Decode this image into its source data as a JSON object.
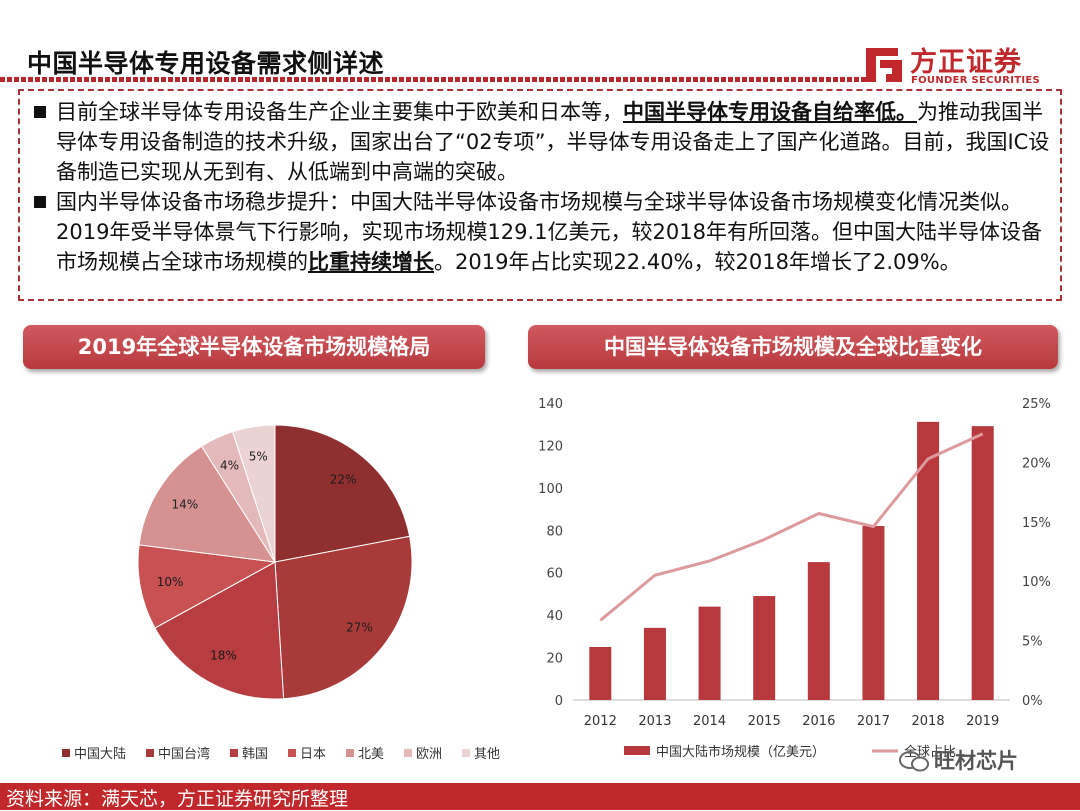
{
  "header": {
    "title": "中国半导体专用设备需求侧详述",
    "logo_cn": "方正证券",
    "logo_en": "FOUNDER SECURITIES"
  },
  "paragraphs": [
    {
      "pre": "目前全球半导体专用设备生产企业主要集中于欧美和日本等，",
      "bold": "中国半导体专用设备自给率低。",
      "post": "为推动我国半导体专用设备制造的技术升级，国家出台了“02专项”，半导体专用设备走上了国产化道路。目前，我国IC设备制造已实现从无到有、从低端到中高端的突破。"
    },
    {
      "pre": "国内半导体设备市场稳步提升：中国大陆半导体设备市场规模与全球半导体设备市场规模变化情况类似。2019年受半导体景气下行影响，实现市场规模129.1亿美元，较2018年有所回落。但中国大陆半导体设备市场规模占全球市场规模的",
      "bold": "比重持续增长",
      "post": "。2019年占比实现22.40%，较2018年增长了2.09%。"
    }
  ],
  "pie_banner": "2019年全球半导体设备市场规模格局",
  "bar_banner": "中国半导体设备市场规模及全球比重变化",
  "chart_data": [
    {
      "type": "pie",
      "title": "2019年全球半导体设备市场规模格局",
      "labels": [
        "中国大陆",
        "中国台湾",
        "韩国",
        "日本",
        "北美",
        "欧洲",
        "其他"
      ],
      "values": [
        22,
        27,
        18,
        10,
        14,
        4,
        5
      ],
      "value_labels": [
        "22%",
        "27%",
        "18%",
        "10%",
        "14%",
        "4%",
        "5%"
      ],
      "colors": [
        "#8f2f2f",
        "#a83a3a",
        "#b83d40",
        "#c85252",
        "#d69191",
        "#e4b9b9",
        "#ecd3d3"
      ],
      "legend_position": "bottom"
    },
    {
      "type": "bar",
      "title": "中国半导体设备市场规模及全球比重变化",
      "categories": [
        "2012",
        "2013",
        "2014",
        "2015",
        "2016",
        "2017",
        "2018",
        "2019"
      ],
      "series": [
        {
          "name": "中国大陆市场规模（亿美元）",
          "type": "bar",
          "axis": "left",
          "values": [
            25,
            34,
            44,
            49,
            65,
            82,
            131.1,
            129.1
          ],
          "color": "#b8393d"
        },
        {
          "name": "全球占比",
          "type": "line",
          "axis": "right",
          "values": [
            6.7,
            10.5,
            11.7,
            13.5,
            15.7,
            14.6,
            20.3,
            22.4
          ],
          "color": "#dc9a9c"
        }
      ],
      "left_ticks": [
        "0",
        "20",
        "40",
        "60",
        "80",
        "100",
        "120",
        "140"
      ],
      "right_ticks": [
        "0%",
        "5%",
        "10%",
        "15%",
        "20%",
        "25%"
      ],
      "ylim_left": [
        0,
        140
      ],
      "ylim_right": [
        0,
        25
      ],
      "legend_position": "bottom"
    }
  ],
  "footer": {
    "source": "资料来源：满天芯，方正证券研究所整理",
    "watermark": "旺材芯片"
  }
}
